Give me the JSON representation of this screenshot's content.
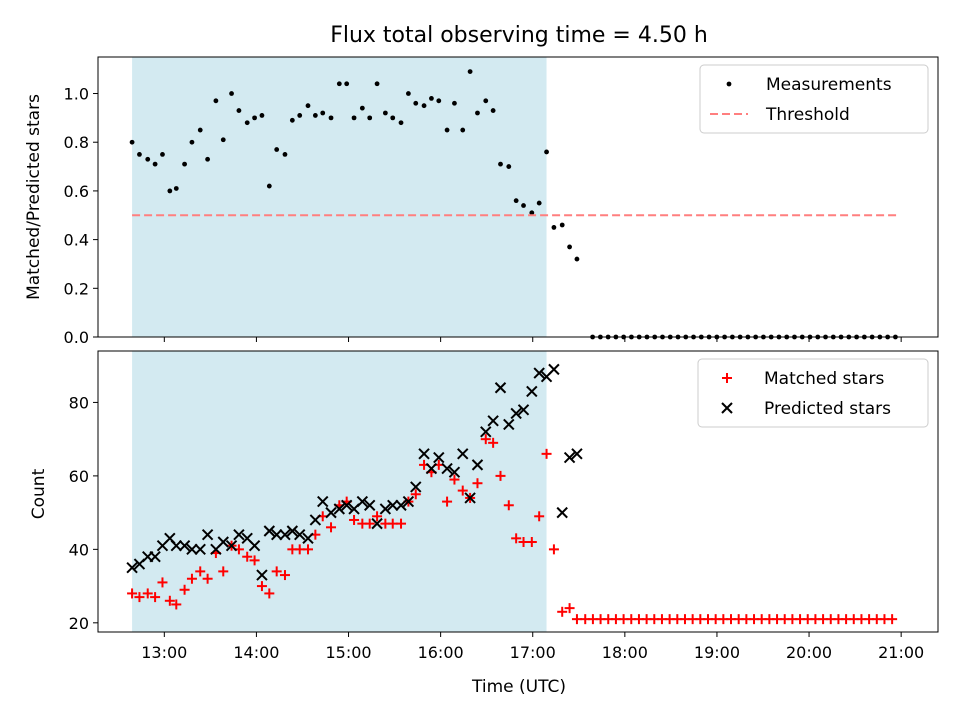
{
  "chart_data": {
    "title": "Flux total observing time = 4.50 h",
    "xlabel": "Time (UTC)",
    "x_range_hours": [
      12.28,
      21.4
    ],
    "x_ticks": [
      "13:00",
      "14:00",
      "15:00",
      "16:00",
      "17:00",
      "18:00",
      "19:00",
      "20:00",
      "21:00"
    ],
    "x_tick_values": [
      13,
      14,
      15,
      16,
      17,
      18,
      19,
      20,
      21
    ],
    "observing_window": {
      "start": 12.65,
      "end": 17.15,
      "color": "#d3eaf1"
    },
    "panels": [
      {
        "type": "scatter",
        "ylabel": "Matched/Predicted stars",
        "ylim": [
          0,
          1.15
        ],
        "y_ticks": [
          "0.0",
          "0.2",
          "0.4",
          "0.6",
          "0.8",
          "1.0"
        ],
        "y_tick_values": [
          0,
          0.2,
          0.4,
          0.6,
          0.8,
          1.0
        ],
        "legend_position": "top-right",
        "series": [
          {
            "name": "Measurements",
            "marker": "dot",
            "color": "#000000",
            "x": [
              12.65,
              12.73,
              12.82,
              12.9,
              12.98,
              13.06,
              13.13,
              13.22,
              13.3,
              13.39,
              13.47,
              13.56,
              13.64,
              13.73,
              13.81,
              13.9,
              13.98,
              14.06,
              14.14,
              14.22,
              14.31,
              14.39,
              14.47,
              14.56,
              14.64,
              14.72,
              14.81,
              14.9,
              14.98,
              15.06,
              15.15,
              15.23,
              15.31,
              15.4,
              15.48,
              15.57,
              15.65,
              15.73,
              15.82,
              15.9,
              15.98,
              16.07,
              16.15,
              16.24,
              16.32,
              16.4,
              16.49,
              16.57,
              16.65,
              16.74,
              16.82,
              16.9,
              16.99,
              17.07,
              17.15,
              17.23,
              17.32,
              17.4,
              17.48
            ],
            "y": [
              0.8,
              0.75,
              0.73,
              0.71,
              0.75,
              0.6,
              0.61,
              0.71,
              0.8,
              0.85,
              0.73,
              0.97,
              0.81,
              1.0,
              0.93,
              0.88,
              0.9,
              0.91,
              0.62,
              0.77,
              0.75,
              0.89,
              0.91,
              0.95,
              0.91,
              0.92,
              0.9,
              1.04,
              1.04,
              0.9,
              0.94,
              0.9,
              1.04,
              0.92,
              0.9,
              0.88,
              1.0,
              0.96,
              0.95,
              0.98,
              0.97,
              0.85,
              0.96,
              0.85,
              1.09,
              0.92,
              0.97,
              0.93,
              0.71,
              0.7,
              0.56,
              0.54,
              0.51,
              0.55,
              0.76,
              0.45,
              0.46,
              0.37,
              0.32
            ]
          },
          {
            "name": "Measurements",
            "marker": "dot",
            "color": "#000000",
            "x_start": 17.65,
            "x_step": 0.0843,
            "count": 40,
            "y_constant": 0
          },
          {
            "name": "Threshold",
            "marker": "dashed-line",
            "color": "#ff7f7f",
            "x": [
              12.65,
              20.95
            ],
            "y": [
              0.5,
              0.5
            ]
          }
        ]
      },
      {
        "type": "scatter",
        "ylabel": "Count",
        "ylim": [
          17.5,
          94
        ],
        "y_ticks": [
          "20",
          "40",
          "60",
          "80"
        ],
        "y_tick_values": [
          20,
          40,
          60,
          80
        ],
        "legend_position": "top-right",
        "series": [
          {
            "name": "Matched stars",
            "marker": "plus",
            "color": "#ff0000",
            "x": [
              12.65,
              12.73,
              12.82,
              12.9,
              12.98,
              13.06,
              13.13,
              13.22,
              13.3,
              13.39,
              13.47,
              13.56,
              13.64,
              13.73,
              13.81,
              13.9,
              13.98,
              14.06,
              14.14,
              14.22,
              14.31,
              14.39,
              14.47,
              14.56,
              14.64,
              14.72,
              14.81,
              14.9,
              14.98,
              15.06,
              15.15,
              15.23,
              15.31,
              15.4,
              15.48,
              15.57,
              15.65,
              15.73,
              15.82,
              15.9,
              15.98,
              16.07,
              16.15,
              16.24,
              16.32,
              16.4,
              16.49,
              16.57,
              16.65,
              16.74,
              16.82,
              16.9,
              16.99,
              17.07,
              17.15,
              17.23,
              17.32,
              17.4,
              17.48
            ],
            "y": [
              28,
              27,
              28,
              27,
              31,
              26,
              25,
              29,
              32,
              34,
              32,
              39,
              34,
              41,
              40,
              38,
              37,
              30,
              28,
              34,
              33,
              40,
              40,
              40,
              44,
              49,
              46,
              52,
              53,
              48,
              47,
              47,
              49,
              47,
              47,
              47,
              53,
              55,
              63,
              61,
              63,
              53,
              59,
              56,
              54,
              58,
              70,
              69,
              60,
              52,
              43,
              42,
              42,
              49,
              66,
              40,
              23,
              24,
              21
            ]
          },
          {
            "name": "Matched stars",
            "marker": "plus",
            "color": "#ff0000",
            "x_start": 17.57,
            "x_step": 0.0833,
            "count": 41,
            "y_constant": 21
          },
          {
            "name": "Predicted stars",
            "marker": "x",
            "color": "#000000",
            "x": [
              12.65,
              12.73,
              12.82,
              12.9,
              12.98,
              13.06,
              13.13,
              13.22,
              13.3,
              13.39,
              13.47,
              13.56,
              13.64,
              13.73,
              13.81,
              13.9,
              13.98,
              14.06,
              14.14,
              14.22,
              14.31,
              14.39,
              14.47,
              14.56,
              14.64,
              14.72,
              14.81,
              14.9,
              14.98,
              15.06,
              15.15,
              15.23,
              15.31,
              15.4,
              15.48,
              15.57,
              15.65,
              15.73,
              15.82,
              15.9,
              15.98,
              16.07,
              16.15,
              16.24,
              16.32,
              16.4,
              16.49,
              16.57,
              16.65,
              16.74,
              16.82,
              16.9,
              16.99,
              17.07,
              17.15,
              17.23,
              17.32,
              17.4,
              17.48
            ],
            "y": [
              35,
              36,
              38,
              38,
              41,
              43,
              41,
              41,
              40,
              40,
              44,
              40,
              42,
              41,
              44,
              43,
              41,
              33,
              45,
              44,
              44,
              45,
              44,
              43,
              48,
              53,
              50,
              51,
              52,
              51,
              53,
              52,
              47,
              51,
              52,
              52,
              53,
              57,
              66,
              62,
              65,
              62,
              61,
              66,
              54,
              63,
              72,
              75,
              84,
              74,
              77,
              78,
              83,
              88,
              87,
              89,
              50,
              65,
              66
            ]
          }
        ]
      }
    ]
  }
}
